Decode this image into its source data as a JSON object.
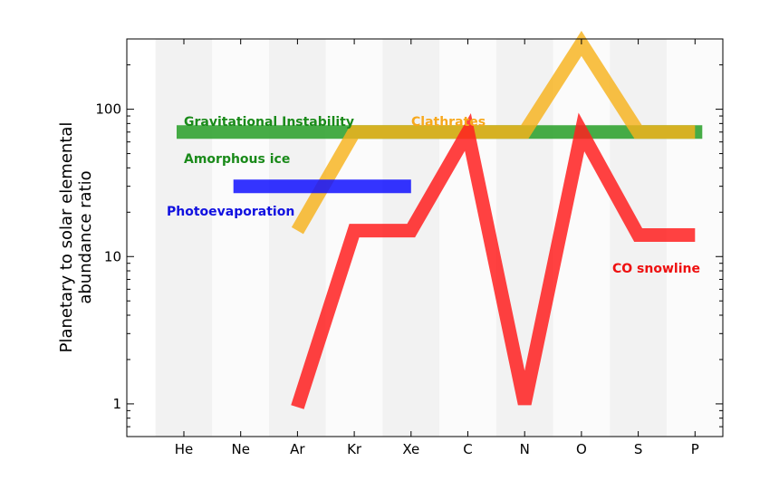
{
  "chart_data": {
    "type": "line",
    "ylabel": "Planetary to solar elemental\nabundance ratio",
    "yscale": "log",
    "ylim": [
      0.6,
      300
    ],
    "yticks": [
      1,
      10,
      100
    ],
    "ytick_labels": [
      "1",
      "10",
      "100"
    ],
    "categories": [
      "He",
      "Ne",
      "Ar",
      "Kr",
      "Xe",
      "C",
      "N",
      "O",
      "S",
      "P"
    ],
    "background_bands": "alternating light gray columns",
    "series": [
      {
        "name": "Gravitational Instability",
        "color": "#2ca02c",
        "x": [
          "He",
          "P"
        ],
        "values": [
          70,
          70
        ]
      },
      {
        "name": "Amorphous ice",
        "color": "#2ca02c",
        "x": [
          "He",
          "P"
        ],
        "values": [
          70,
          70
        ]
      },
      {
        "name": "Clathrates",
        "color": "#f7b21c",
        "x": [
          "Ar",
          "Kr",
          "Xe",
          "C",
          "N",
          "O",
          "S",
          "P"
        ],
        "values": [
          15,
          70,
          70,
          70,
          70,
          280,
          70,
          70
        ]
      },
      {
        "name": "Photoevaporation",
        "color": "#1010ff",
        "x": [
          "Ne",
          "Xe"
        ],
        "values": [
          30,
          30
        ]
      },
      {
        "name": "CO snowline",
        "color": "#ff2020",
        "x": [
          "Ar",
          "Kr",
          "Xe",
          "C",
          "N",
          "O",
          "S",
          "P"
        ],
        "values": [
          0.95,
          15,
          15,
          70,
          1.0,
          70,
          14,
          14
        ]
      }
    ],
    "annotations": [
      {
        "text": "Gravitational Instability",
        "color": "#1a8a1a"
      },
      {
        "text": "Amorphous ice",
        "color": "#1a8a1a"
      },
      {
        "text": "Clathrates",
        "color": "#f7a81c"
      },
      {
        "text": "Photoevaporation",
        "color": "#1010e0"
      },
      {
        "text": "CO snowline",
        "color": "#ee1010"
      }
    ]
  }
}
